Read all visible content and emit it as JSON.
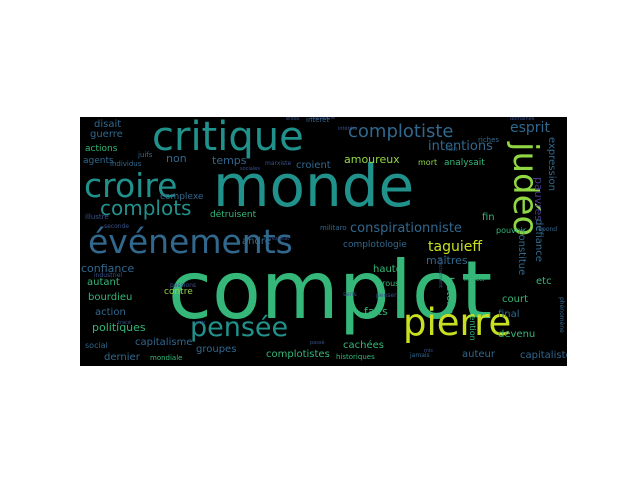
{
  "word_cloud": {
    "background": "#000000",
    "palette": [
      "#443983",
      "#31688e",
      "#21918c",
      "#35b779",
      "#90d743",
      "#fde725",
      "#3b528b",
      "#26828e",
      "#1f9e89",
      "#6ece58",
      "#46327e",
      "#482878"
    ],
    "words": [
      {
        "text": "complot",
        "color": "#35b779"
      },
      {
        "text": "monde",
        "color": "#21918c"
      },
      {
        "text": "critique",
        "color": "#21918c"
      },
      {
        "text": "événements",
        "color": "#31688e"
      },
      {
        "text": "croire",
        "color": "#21918c"
      },
      {
        "text": "pierre",
        "color": "#c8e020"
      },
      {
        "text": "judéo",
        "color": "#90d743"
      },
      {
        "text": "pensée",
        "color": "#21918c"
      },
      {
        "text": "complotiste",
        "color": "#31688e"
      },
      {
        "text": "complots",
        "color": "#21918c"
      },
      {
        "text": "esprit",
        "color": "#31688e"
      },
      {
        "text": "conspirationniste",
        "color": "#31688e"
      },
      {
        "text": "taguieff",
        "color": "#c8e020"
      },
      {
        "text": "intentions",
        "color": "#31688e"
      },
      {
        "text": "amoureux",
        "color": "#90d743"
      },
      {
        "text": "pauvres",
        "color": "#443983"
      },
      {
        "text": "temps",
        "color": "#31688e"
      },
      {
        "text": "croient",
        "color": "#31688e"
      },
      {
        "text": "analysait",
        "color": "#35b779"
      },
      {
        "text": "non",
        "color": "#31688e"
      },
      {
        "text": "complexe",
        "color": "#31688e"
      },
      {
        "text": "détruisent",
        "color": "#35b779"
      },
      {
        "text": "andré",
        "color": "#31688e"
      },
      {
        "text": "complotologie",
        "color": "#31688e"
      },
      {
        "text": "maîtres",
        "color": "#31688e"
      },
      {
        "text": "haute",
        "color": "#35b779"
      },
      {
        "text": "confiance",
        "color": "#31688e"
      },
      {
        "text": "autant",
        "color": "#35b779"
      },
      {
        "text": "bourdieu",
        "color": "#35b779"
      },
      {
        "text": "contre",
        "color": "#90d743"
      },
      {
        "text": "action",
        "color": "#31688e"
      },
      {
        "text": "politiques",
        "color": "#35b779"
      },
      {
        "text": "faits",
        "color": "#35b779"
      },
      {
        "text": "capitalisme",
        "color": "#31688e"
      },
      {
        "text": "groupes",
        "color": "#31688e"
      },
      {
        "text": "complotistes",
        "color": "#35b779"
      },
      {
        "text": "cachées",
        "color": "#35b779"
      },
      {
        "text": "dernier",
        "color": "#31688e"
      },
      {
        "text": "auteur",
        "color": "#31688e"
      },
      {
        "text": "capitaliste",
        "color": "#31688e"
      },
      {
        "text": "devenu",
        "color": "#35b779"
      },
      {
        "text": "final",
        "color": "#31688e"
      },
      {
        "text": "court",
        "color": "#35b779"
      },
      {
        "text": "etc",
        "color": "#35b779"
      },
      {
        "text": "fin",
        "color": "#35b779"
      },
      {
        "text": "disait",
        "color": "#31688e"
      },
      {
        "text": "guerre",
        "color": "#31688e"
      },
      {
        "text": "actions",
        "color": "#35b779"
      },
      {
        "text": "agents",
        "color": "#31688e"
      },
      {
        "text": "constitue",
        "color": "#31688e"
      },
      {
        "text": "défiance",
        "color": "#31688e"
      },
      {
        "text": "expression",
        "color": "#31688e"
      },
      {
        "text": "histoire",
        "color": "#35b779"
      },
      {
        "text": "intention",
        "color": "#35b779"
      },
      {
        "text": "mondiale",
        "color": "#35b779"
      },
      {
        "text": "social",
        "color": "#31688e"
      },
      {
        "text": "individus",
        "color": "#31688e"
      },
      {
        "text": "juifs",
        "color": "#31688e"
      },
      {
        "text": "marxiste",
        "color": "#3b528b"
      },
      {
        "text": "pouvoir",
        "color": "#35b779"
      },
      {
        "text": "rien",
        "color": "#31688e"
      },
      {
        "text": "mort",
        "color": "#90d743"
      },
      {
        "text": "riches",
        "color": "#31688e"
      },
      {
        "text": "intérêt",
        "color": "#31688e"
      },
      {
        "text": "militaro",
        "color": "#31688e"
      },
      {
        "text": "industriel",
        "color": "#3b528b"
      },
      {
        "text": "seconde",
        "color": "#3b528b"
      },
      {
        "text": "illustre",
        "color": "#3b528b"
      },
      {
        "text": "proust",
        "color": "#35b779"
      },
      {
        "text": "marcel",
        "color": "#35b779"
      },
      {
        "text": "historiques",
        "color": "#35b779"
      },
      {
        "text": "jamais",
        "color": "#31688e"
      },
      {
        "text": "phénomène",
        "color": "#31688e"
      },
      {
        "text": "répond",
        "color": "#31688e"
      },
      {
        "text": "résultat",
        "color": "#3b528b"
      },
      {
        "text": "passions",
        "color": "#3b528b"
      },
      {
        "text": "précisément",
        "color": "#3b528b"
      },
      {
        "text": "sociales",
        "color": "#3b528b"
      },
      {
        "text": "sociologie",
        "color": "#3b528b"
      },
      {
        "text": "élites",
        "color": "#3b528b"
      },
      {
        "text": "intérêts",
        "color": "#3b528b"
      },
      {
        "text": "domaines",
        "color": "#3b528b"
      },
      {
        "text": "sens",
        "color": "#3b528b"
      },
      {
        "text": "penser",
        "color": "#3b528b"
      },
      {
        "text": "voir",
        "color": "#3b528b"
      },
      {
        "text": "tracé",
        "color": "#3b528b"
      },
      {
        "text": "mis",
        "color": "#3b528b"
      },
      {
        "text": "passé",
        "color": "#3b528b"
      }
    ]
  }
}
